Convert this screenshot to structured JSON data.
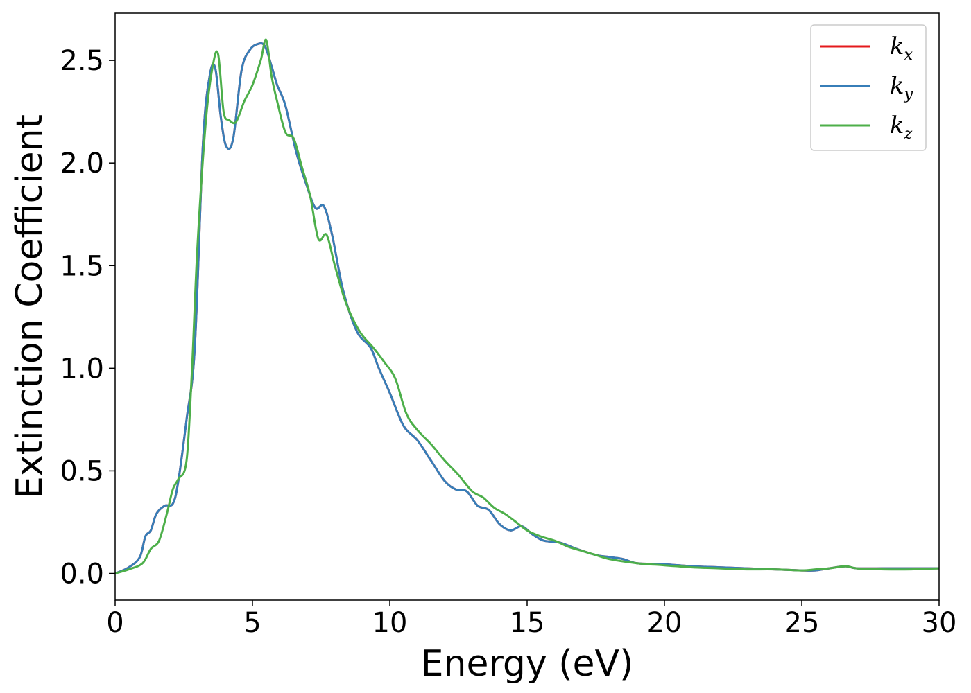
{
  "chart_data": {
    "type": "line",
    "xlabel": "Energy (eV)",
    "ylabel": "Extinction Coefficient",
    "xlim": [
      0,
      30
    ],
    "ylim": [
      -0.13,
      2.73
    ],
    "xticks": [
      "0",
      "5",
      "10",
      "15",
      "20",
      "25",
      "30"
    ],
    "yticks": [
      "0.0",
      "0.5",
      "1.0",
      "1.5",
      "2.0",
      "2.5"
    ],
    "grid": false,
    "legend_position": "top-right",
    "series": [
      {
        "name": "k",
        "subscript": "x",
        "color": "#e41a1c",
        "x": [
          0,
          0.5,
          0.9,
          1.1,
          1.3,
          1.5,
          1.8,
          2.1,
          2.3,
          2.6,
          2.9,
          3.2,
          3.45,
          3.65,
          3.85,
          4.05,
          4.3,
          4.6,
          4.9,
          5.2,
          5.45,
          5.7,
          5.9,
          6.2,
          6.6,
          7.0,
          7.3,
          7.6,
          7.9,
          8.3,
          8.8,
          9.3,
          9.6,
          10.0,
          10.5,
          11.0,
          11.5,
          12.0,
          12.4,
          12.8,
          13.2,
          13.6,
          14.0,
          14.4,
          14.8,
          15.2,
          15.6,
          16.2,
          16.8,
          17.5,
          18.0,
          18.5,
          19.0,
          20.0,
          21.0,
          22.0,
          23.0,
          24.0,
          25.0,
          25.5,
          26.0,
          26.6,
          27.0,
          28.0,
          29.0,
          30.0
        ],
        "y": [
          0,
          0.03,
          0.08,
          0.18,
          0.21,
          0.29,
          0.33,
          0.34,
          0.45,
          0.75,
          1.1,
          2.1,
          2.43,
          2.46,
          2.22,
          2.08,
          2.12,
          2.45,
          2.55,
          2.58,
          2.57,
          2.47,
          2.38,
          2.28,
          2.05,
          1.88,
          1.78,
          1.79,
          1.65,
          1.38,
          1.18,
          1.1,
          1.0,
          0.88,
          0.72,
          0.65,
          0.55,
          0.45,
          0.41,
          0.4,
          0.33,
          0.31,
          0.24,
          0.21,
          0.23,
          0.19,
          0.16,
          0.15,
          0.12,
          0.09,
          0.08,
          0.07,
          0.05,
          0.045,
          0.035,
          0.03,
          0.025,
          0.02,
          0.015,
          0.015,
          0.025,
          0.035,
          0.025,
          0.025,
          0.025,
          0.025
        ]
      },
      {
        "name": "k",
        "subscript": "y",
        "color": "#377eb8",
        "x": [
          0,
          0.5,
          0.9,
          1.1,
          1.3,
          1.5,
          1.8,
          2.1,
          2.3,
          2.6,
          2.9,
          3.2,
          3.45,
          3.65,
          3.85,
          4.05,
          4.3,
          4.6,
          4.9,
          5.2,
          5.45,
          5.7,
          5.9,
          6.2,
          6.6,
          7.0,
          7.3,
          7.6,
          7.9,
          8.3,
          8.8,
          9.3,
          9.6,
          10.0,
          10.5,
          11.0,
          11.5,
          12.0,
          12.4,
          12.8,
          13.2,
          13.6,
          14.0,
          14.4,
          14.8,
          15.2,
          15.6,
          16.2,
          16.8,
          17.5,
          18.0,
          18.5,
          19.0,
          20.0,
          21.0,
          22.0,
          23.0,
          24.0,
          25.0,
          25.5,
          26.0,
          26.6,
          27.0,
          28.0,
          29.0,
          30.0
        ],
        "y": [
          0,
          0.03,
          0.08,
          0.18,
          0.21,
          0.29,
          0.33,
          0.34,
          0.45,
          0.75,
          1.1,
          2.1,
          2.43,
          2.46,
          2.22,
          2.08,
          2.12,
          2.45,
          2.55,
          2.58,
          2.57,
          2.47,
          2.38,
          2.28,
          2.05,
          1.88,
          1.78,
          1.79,
          1.65,
          1.38,
          1.18,
          1.1,
          1.0,
          0.88,
          0.72,
          0.65,
          0.55,
          0.45,
          0.41,
          0.4,
          0.33,
          0.31,
          0.24,
          0.21,
          0.23,
          0.19,
          0.16,
          0.15,
          0.12,
          0.09,
          0.08,
          0.07,
          0.05,
          0.045,
          0.035,
          0.03,
          0.025,
          0.02,
          0.015,
          0.015,
          0.025,
          0.035,
          0.025,
          0.025,
          0.025,
          0.025
        ]
      },
      {
        "name": "k",
        "subscript": "z",
        "color": "#4daf4a",
        "x": [
          0,
          0.5,
          1.0,
          1.3,
          1.6,
          1.9,
          2.1,
          2.3,
          2.6,
          2.8,
          3.0,
          3.3,
          3.55,
          3.75,
          3.95,
          4.15,
          4.4,
          4.7,
          5.0,
          5.3,
          5.5,
          5.7,
          5.9,
          6.2,
          6.5,
          6.8,
          7.1,
          7.4,
          7.7,
          8.0,
          8.4,
          8.9,
          9.4,
          9.8,
          10.2,
          10.6,
          11.0,
          11.5,
          12.0,
          12.5,
          13.0,
          13.4,
          13.8,
          14.2,
          14.6,
          15.0,
          15.5,
          16.0,
          16.5,
          17.0,
          17.5,
          18.0,
          19.0,
          20.0,
          21.0,
          22.0,
          23.0,
          24.0,
          25.0,
          25.5,
          26.0,
          26.6,
          27.0,
          28.0,
          29.0,
          30.0
        ],
        "y": [
          0,
          0.02,
          0.05,
          0.12,
          0.16,
          0.3,
          0.41,
          0.46,
          0.55,
          1.0,
          1.6,
          2.2,
          2.47,
          2.53,
          2.25,
          2.21,
          2.2,
          2.3,
          2.38,
          2.5,
          2.6,
          2.42,
          2.3,
          2.15,
          2.12,
          1.98,
          1.84,
          1.63,
          1.65,
          1.5,
          1.32,
          1.18,
          1.1,
          1.03,
          0.95,
          0.78,
          0.7,
          0.63,
          0.55,
          0.48,
          0.4,
          0.37,
          0.32,
          0.29,
          0.25,
          0.21,
          0.18,
          0.16,
          0.13,
          0.11,
          0.09,
          0.07,
          0.05,
          0.04,
          0.03,
          0.025,
          0.02,
          0.02,
          0.015,
          0.02,
          0.025,
          0.035,
          0.025,
          0.02,
          0.02,
          0.025
        ]
      }
    ]
  }
}
